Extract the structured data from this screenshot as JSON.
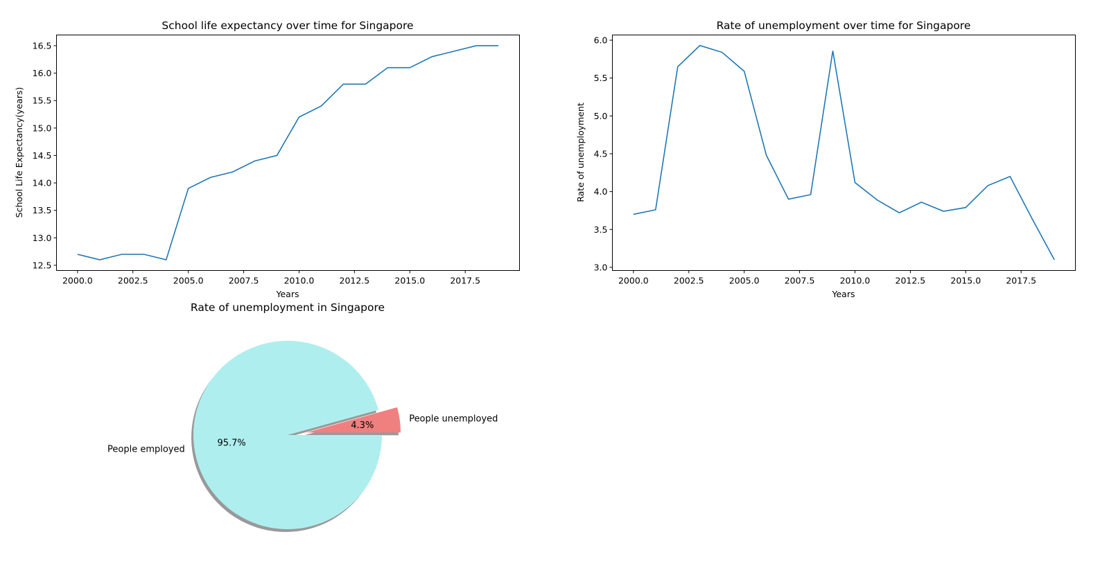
{
  "chart_data": [
    {
      "type": "line",
      "title": "School life expectancy over time for Singapore",
      "xlabel": "Years",
      "ylabel": "School Life Expectancy(years)",
      "xlim": [
        1999.05,
        2019.95
      ],
      "ylim": [
        12.405,
        16.695
      ],
      "x_ticks": [
        2000,
        2002.5,
        2005,
        2007.5,
        2010,
        2012.5,
        2015,
        2017.5
      ],
      "x_tick_labels": [
        "2000.0",
        "2002.5",
        "2005.0",
        "2007.5",
        "2010.0",
        "2012.5",
        "2015.0",
        "2017.5"
      ],
      "y_ticks": [
        12.5,
        13.0,
        13.5,
        14.0,
        14.5,
        15.0,
        15.5,
        16.0,
        16.5
      ],
      "y_tick_labels": [
        "12.5",
        "13.0",
        "13.5",
        "14.0",
        "14.5",
        "15.0",
        "15.5",
        "16.0",
        "16.5"
      ],
      "color": "#1f77b4",
      "grid": false,
      "x": [
        2000,
        2001,
        2002,
        2003,
        2004,
        2005,
        2006,
        2007,
        2008,
        2009,
        2010,
        2011,
        2012,
        2013,
        2014,
        2015,
        2016,
        2017,
        2018,
        2019
      ],
      "y": [
        12.7,
        12.6,
        12.7,
        12.7,
        12.6,
        13.9,
        14.1,
        14.2,
        14.4,
        14.5,
        15.2,
        15.4,
        15.8,
        15.8,
        16.1,
        16.1,
        16.3,
        16.4,
        16.5,
        16.5
      ]
    },
    {
      "type": "line",
      "title": "Rate of unemployment over time for Singapore",
      "xlabel": "Years",
      "ylabel": "Rate of unemployment",
      "xlim": [
        1999.05,
        2019.95
      ],
      "ylim": [
        2.958,
        6.069
      ],
      "x_ticks": [
        2000,
        2002.5,
        2005,
        2007.5,
        2010,
        2012.5,
        2015,
        2017.5
      ],
      "x_tick_labels": [
        "2000.0",
        "2002.5",
        "2005.0",
        "2007.5",
        "2010.0",
        "2012.5",
        "2015.0",
        "2017.5"
      ],
      "y_ticks": [
        3.0,
        3.5,
        4.0,
        4.5,
        5.0,
        5.5,
        6.0
      ],
      "y_tick_labels": [
        "3.0",
        "3.5",
        "4.0",
        "4.5",
        "5.0",
        "5.5",
        "6.0"
      ],
      "color": "#1f77b4",
      "grid": false,
      "x": [
        2000,
        2001,
        2002,
        2003,
        2004,
        2005,
        2006,
        2007,
        2008,
        2009,
        2010,
        2011,
        2012,
        2013,
        2014,
        2015,
        2016,
        2017,
        2018,
        2019
      ],
      "y": [
        3.7,
        3.76,
        5.65,
        5.93,
        5.84,
        5.59,
        4.48,
        3.9,
        3.96,
        5.86,
        4.12,
        3.89,
        3.72,
        3.86,
        3.74,
        3.79,
        4.08,
        4.2,
        3.64,
        3.1
      ]
    },
    {
      "type": "pie",
      "title": "Rate of unemployment in Singapore",
      "shadow": true,
      "slices": [
        {
          "label": "People unemployed",
          "value": 4.3,
          "pct_label": "4.3%",
          "color": "#f08080",
          "exploded": true
        },
        {
          "label": "People employed",
          "value": 95.7,
          "pct_label": "95.7%",
          "color": "#afeeee",
          "exploded": false
        }
      ]
    }
  ]
}
